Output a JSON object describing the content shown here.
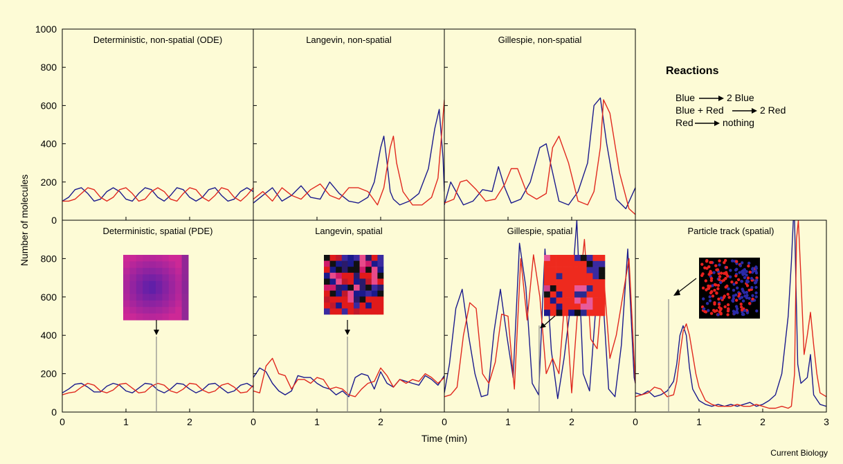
{
  "figure": {
    "credit": "Current Biology",
    "x_axis_label": "Time (min)",
    "y_axis_label": "Number of molecules",
    "y_ticks_top": [
      "0",
      "200",
      "400",
      "600",
      "800",
      "1000"
    ],
    "y_ticks_bottom": [
      "0",
      "200",
      "400",
      "600",
      "800"
    ],
    "x_ticks_panel": [
      "0",
      "1",
      "2"
    ],
    "x_ticks_last": [
      "0",
      "1",
      "2",
      "3"
    ]
  },
  "reactions": {
    "title": "Reactions",
    "lines": [
      {
        "left": "Blue",
        "right": "2 Blue"
      },
      {
        "left": "Blue + Red",
        "right": "2 Red"
      },
      {
        "left": "Red",
        "right": "nothing"
      }
    ]
  },
  "colors": {
    "blue": "#1a1a8c",
    "red": "#e0281e",
    "background": "#fdfbd6",
    "marker": "#8a8a8a"
  },
  "chart_data": [
    {
      "type": "line",
      "title": "Deterministic, non-spatial (ODE)",
      "xlim": [
        0,
        3
      ],
      "ylim": [
        0,
        1000
      ],
      "series": [
        {
          "color": "blue",
          "x": [
            0,
            0.1,
            0.2,
            0.3,
            0.4,
            0.5,
            0.6,
            0.7,
            0.8,
            0.9,
            1.0,
            1.1,
            1.2,
            1.3,
            1.4,
            1.5,
            1.6,
            1.7,
            1.8,
            1.9,
            2.0,
            2.1,
            2.2,
            2.3,
            2.4,
            2.5,
            2.6,
            2.7,
            2.8,
            2.9,
            3.0
          ],
          "y": [
            100,
            120,
            160,
            170,
            140,
            100,
            110,
            150,
            170,
            150,
            110,
            100,
            140,
            170,
            160,
            120,
            100,
            130,
            170,
            160,
            120,
            100,
            120,
            160,
            170,
            130,
            100,
            110,
            150,
            170,
            150
          ]
        },
        {
          "color": "red",
          "x": [
            0,
            0.1,
            0.2,
            0.3,
            0.4,
            0.5,
            0.6,
            0.7,
            0.8,
            0.9,
            1.0,
            1.1,
            1.2,
            1.3,
            1.4,
            1.5,
            1.6,
            1.7,
            1.8,
            1.9,
            2.0,
            2.1,
            2.2,
            2.3,
            2.4,
            2.5,
            2.6,
            2.7,
            2.8,
            2.9,
            3.0
          ],
          "y": [
            100,
            100,
            110,
            140,
            170,
            160,
            120,
            100,
            120,
            160,
            170,
            140,
            100,
            110,
            150,
            170,
            150,
            110,
            100,
            140,
            170,
            160,
            120,
            100,
            130,
            170,
            160,
            120,
            100,
            130,
            170
          ]
        }
      ]
    },
    {
      "type": "line",
      "title": "Langevin, non-spatial",
      "xlim": [
        0,
        3
      ],
      "ylim": [
        0,
        1000
      ],
      "series": [
        {
          "color": "blue",
          "x": [
            0,
            0.15,
            0.3,
            0.45,
            0.6,
            0.75,
            0.9,
            1.05,
            1.2,
            1.35,
            1.5,
            1.65,
            1.8,
            1.9,
            2.0,
            2.05,
            2.1,
            2.15,
            2.2,
            2.3,
            2.45,
            2.6,
            2.75,
            2.85,
            2.92,
            2.98,
            3.0
          ],
          "y": [
            90,
            130,
            170,
            100,
            130,
            180,
            120,
            110,
            200,
            140,
            100,
            90,
            120,
            200,
            380,
            440,
            300,
            150,
            110,
            80,
            100,
            140,
            270,
            480,
            580,
            320,
            150
          ]
        },
        {
          "color": "red",
          "x": [
            0,
            0.15,
            0.3,
            0.45,
            0.6,
            0.75,
            0.9,
            1.05,
            1.2,
            1.35,
            1.5,
            1.65,
            1.8,
            1.95,
            2.05,
            2.15,
            2.2,
            2.25,
            2.35,
            2.5,
            2.65,
            2.8,
            2.9,
            2.96,
            3.0
          ],
          "y": [
            110,
            150,
            100,
            170,
            130,
            110,
            160,
            190,
            130,
            110,
            170,
            170,
            150,
            80,
            170,
            380,
            440,
            300,
            150,
            80,
            80,
            120,
            220,
            460,
            630
          ]
        }
      ]
    },
    {
      "type": "line",
      "title": "Gillespie, non-spatial",
      "xlim": [
        0,
        3
      ],
      "ylim": [
        0,
        1000
      ],
      "series": [
        {
          "color": "blue",
          "x": [
            0,
            0.1,
            0.2,
            0.3,
            0.45,
            0.6,
            0.75,
            0.85,
            0.95,
            1.05,
            1.2,
            1.35,
            1.5,
            1.6,
            1.7,
            1.8,
            1.95,
            2.1,
            2.25,
            2.35,
            2.45,
            2.55,
            2.7,
            2.85,
            3.0
          ],
          "y": [
            80,
            200,
            140,
            80,
            100,
            160,
            150,
            280,
            170,
            90,
            110,
            200,
            380,
            400,
            250,
            100,
            80,
            150,
            300,
            600,
            640,
            400,
            110,
            60,
            170
          ]
        },
        {
          "color": "red",
          "x": [
            0,
            0.15,
            0.25,
            0.35,
            0.5,
            0.65,
            0.8,
            0.95,
            1.05,
            1.15,
            1.3,
            1.45,
            1.6,
            1.7,
            1.8,
            1.95,
            2.1,
            2.25,
            2.35,
            2.45,
            2.5,
            2.6,
            2.75,
            2.9,
            3.0
          ],
          "y": [
            90,
            110,
            200,
            210,
            160,
            100,
            110,
            190,
            270,
            270,
            140,
            110,
            140,
            380,
            440,
            300,
            100,
            80,
            150,
            380,
            630,
            560,
            250,
            60,
            30
          ]
        }
      ]
    },
    {
      "type": "line",
      "title": "Deterministic, spatial (PDE)",
      "xlim": [
        0,
        3
      ],
      "ylim": [
        0,
        1000
      ],
      "series": [
        {
          "color": "blue",
          "x": [
            0,
            0.1,
            0.2,
            0.3,
            0.4,
            0.5,
            0.6,
            0.7,
            0.8,
            0.9,
            1.0,
            1.1,
            1.2,
            1.3,
            1.4,
            1.5,
            1.6,
            1.7,
            1.8,
            1.9,
            2.0,
            2.1,
            2.2,
            2.3,
            2.4,
            2.5,
            2.6,
            2.7,
            2.8,
            2.9,
            3.0
          ],
          "y": [
            100,
            120,
            145,
            150,
            130,
            105,
            105,
            135,
            150,
            140,
            110,
            100,
            125,
            150,
            145,
            115,
            100,
            120,
            150,
            145,
            120,
            100,
            115,
            145,
            150,
            125,
            100,
            110,
            140,
            150,
            130
          ]
        },
        {
          "color": "red",
          "x": [
            0,
            0.1,
            0.2,
            0.3,
            0.4,
            0.5,
            0.6,
            0.7,
            0.8,
            0.9,
            1.0,
            1.1,
            1.2,
            1.3,
            1.4,
            1.5,
            1.6,
            1.7,
            1.8,
            1.9,
            2.0,
            2.1,
            2.2,
            2.3,
            2.4,
            2.5,
            2.6,
            2.7,
            2.8,
            2.9,
            3.0
          ],
          "y": [
            90,
            100,
            105,
            130,
            150,
            140,
            110,
            100,
            115,
            145,
            150,
            125,
            100,
            105,
            135,
            150,
            140,
            110,
            100,
            120,
            150,
            145,
            115,
            100,
            110,
            140,
            150,
            130,
            100,
            105,
            140
          ]
        }
      ]
    },
    {
      "type": "line",
      "title": "Langevin, spatial",
      "xlim": [
        0,
        3
      ],
      "ylim": [
        0,
        1000
      ],
      "series": [
        {
          "color": "blue",
          "x": [
            0,
            0.1,
            0.2,
            0.3,
            0.4,
            0.5,
            0.6,
            0.7,
            0.8,
            0.9,
            1.0,
            1.1,
            1.2,
            1.3,
            1.4,
            1.5,
            1.6,
            1.7,
            1.8,
            1.9,
            2.0,
            2.1,
            2.2,
            2.3,
            2.4,
            2.5,
            2.6,
            2.7,
            2.8,
            2.9,
            3.0
          ],
          "y": [
            180,
            230,
            210,
            150,
            110,
            90,
            110,
            190,
            180,
            180,
            150,
            130,
            120,
            90,
            110,
            80,
            180,
            200,
            190,
            120,
            210,
            150,
            130,
            170,
            160,
            150,
            140,
            190,
            170,
            140,
            190
          ]
        },
        {
          "color": "red",
          "x": [
            0,
            0.1,
            0.2,
            0.3,
            0.4,
            0.5,
            0.6,
            0.7,
            0.8,
            0.9,
            1.0,
            1.1,
            1.2,
            1.3,
            1.4,
            1.5,
            1.6,
            1.7,
            1.8,
            1.9,
            2.0,
            2.1,
            2.2,
            2.3,
            2.4,
            2.5,
            2.6,
            2.7,
            2.8,
            2.9,
            3.0
          ],
          "y": [
            110,
            100,
            240,
            280,
            200,
            190,
            120,
            170,
            170,
            150,
            180,
            170,
            120,
            130,
            120,
            90,
            80,
            120,
            150,
            160,
            230,
            190,
            130,
            170,
            150,
            170,
            160,
            200,
            180,
            150,
            180
          ]
        }
      ]
    },
    {
      "type": "line",
      "title": "Gillespie, spatial",
      "xlim": [
        0,
        3
      ],
      "ylim": [
        0,
        1000
      ],
      "series": [
        {
          "color": "blue",
          "x": [
            0,
            0.08,
            0.18,
            0.28,
            0.38,
            0.48,
            0.58,
            0.68,
            0.78,
            0.88,
            0.98,
            1.08,
            1.18,
            1.28,
            1.38,
            1.48,
            1.58,
            1.68,
            1.78,
            1.88,
            1.98,
            2.08,
            2.18,
            2.28,
            2.38,
            2.48,
            2.58,
            2.68,
            2.78,
            2.88,
            2.98,
            3.0
          ],
          "y": [
            100,
            250,
            540,
            640,
            400,
            200,
            80,
            90,
            420,
            640,
            400,
            180,
            880,
            650,
            150,
            90,
            850,
            320,
            70,
            280,
            550,
            1000,
            200,
            110,
            550,
            650,
            120,
            80,
            350,
            850,
            180,
            150
          ]
        },
        {
          "color": "red",
          "x": [
            0,
            0.1,
            0.2,
            0.3,
            0.4,
            0.5,
            0.6,
            0.7,
            0.8,
            0.9,
            1.0,
            1.1,
            1.2,
            1.3,
            1.4,
            1.5,
            1.6,
            1.7,
            1.8,
            1.9,
            2.0,
            2.1,
            2.2,
            2.3,
            2.4,
            2.5,
            2.6,
            2.7,
            2.8,
            2.9,
            3.0
          ],
          "y": [
            80,
            90,
            130,
            400,
            570,
            540,
            200,
            150,
            260,
            510,
            500,
            120,
            800,
            480,
            820,
            600,
            200,
            280,
            200,
            620,
            100,
            560,
            900,
            380,
            330,
            720,
            280,
            400,
            600,
            800,
            150
          ]
        }
      ]
    },
    {
      "type": "line",
      "title": "Particle track (spatial)",
      "xlim": [
        0,
        3
      ],
      "ylim": [
        0,
        1000
      ],
      "series": [
        {
          "color": "blue",
          "x": [
            0,
            0.1,
            0.2,
            0.3,
            0.4,
            0.5,
            0.6,
            0.65,
            0.7,
            0.75,
            0.8,
            0.85,
            0.9,
            1.0,
            1.1,
            1.2,
            1.3,
            1.4,
            1.5,
            1.6,
            1.7,
            1.8,
            1.9,
            2.0,
            2.1,
            2.2,
            2.3,
            2.4,
            2.45,
            2.48,
            2.5,
            2.52,
            2.55,
            2.6,
            2.7,
            2.75,
            2.8,
            2.9,
            3.0
          ],
          "y": [
            100,
            90,
            110,
            80,
            90,
            110,
            160,
            250,
            400,
            450,
            400,
            230,
            120,
            60,
            40,
            30,
            40,
            30,
            40,
            30,
            40,
            50,
            30,
            40,
            60,
            90,
            200,
            500,
            780,
            1000,
            1000,
            700,
            250,
            150,
            180,
            300,
            90,
            40,
            30
          ]
        },
        {
          "color": "red",
          "x": [
            0,
            0.1,
            0.2,
            0.3,
            0.4,
            0.5,
            0.6,
            0.65,
            0.7,
            0.75,
            0.8,
            0.85,
            0.9,
            0.95,
            1.0,
            1.1,
            1.2,
            1.3,
            1.4,
            1.5,
            1.6,
            1.7,
            1.8,
            1.9,
            2.0,
            2.1,
            2.2,
            2.3,
            2.4,
            2.45,
            2.5,
            2.53,
            2.56,
            2.6,
            2.65,
            2.7,
            2.75,
            2.8,
            2.85,
            2.9,
            3.0
          ],
          "y": [
            80,
            90,
            100,
            130,
            120,
            80,
            90,
            160,
            300,
            420,
            460,
            400,
            300,
            200,
            130,
            60,
            40,
            30,
            30,
            30,
            40,
            30,
            30,
            40,
            30,
            20,
            20,
            30,
            20,
            30,
            200,
            900,
            1000,
            700,
            300,
            400,
            520,
            350,
            200,
            100,
            80
          ]
        }
      ]
    }
  ]
}
